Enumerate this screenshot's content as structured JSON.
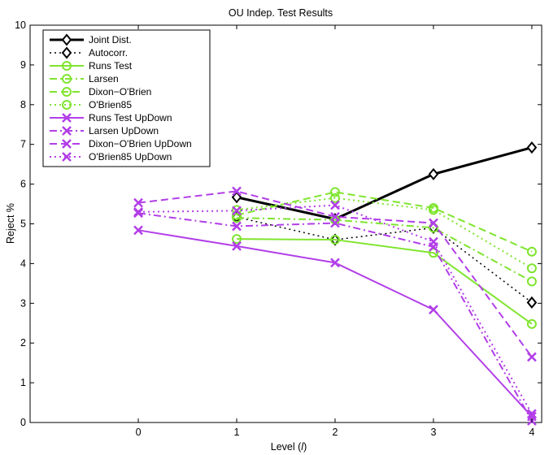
{
  "chart_data": {
    "type": "line",
    "title": "OU Indep. Test Results",
    "xlabel": "Level (",
    "xlabel_italic": "l",
    "xlabel_close": ")",
    "ylabel": "Reject %",
    "xlim": [
      -1.1,
      4.1
    ],
    "ylim": [
      0,
      10
    ],
    "xticks": [
      0,
      1,
      2,
      3,
      4
    ],
    "yticks": [
      0,
      1,
      2,
      3,
      4,
      5,
      6,
      7,
      8,
      9,
      10
    ],
    "grid": false,
    "legend_position": "top-left",
    "series": [
      {
        "name": "Joint Dist.",
        "color": "#000000",
        "dash": "solid",
        "width": 3,
        "marker": "diamond",
        "x": [
          1,
          2,
          3,
          4
        ],
        "values": [
          5.67,
          5.12,
          6.25,
          6.92
        ]
      },
      {
        "name": "Autocorr.",
        "color": "#000000",
        "dash": "dot",
        "width": 1.5,
        "marker": "diamond",
        "x": [
          1,
          2,
          3,
          4
        ],
        "values": [
          5.17,
          4.6,
          4.9,
          3.02
        ]
      },
      {
        "name": "Runs Test",
        "color": "#7fe52f",
        "dash": "solid",
        "width": 2,
        "marker": "circle",
        "x": [
          1,
          2,
          3,
          4
        ],
        "values": [
          4.62,
          4.6,
          4.27,
          2.48
        ]
      },
      {
        "name": "Larsen",
        "color": "#7fe52f",
        "dash": "dashdot",
        "width": 2,
        "marker": "circle",
        "x": [
          1,
          2,
          3,
          4
        ],
        "values": [
          5.15,
          5.1,
          4.9,
          3.55
        ]
      },
      {
        "name": "Dixon−O'Brien",
        "color": "#7fe52f",
        "dash": "dash",
        "width": 2,
        "marker": "circle",
        "x": [
          1,
          2,
          3,
          4
        ],
        "values": [
          5.22,
          5.8,
          5.4,
          4.3
        ]
      },
      {
        "name": "O'Brien85",
        "color": "#7fe52f",
        "dash": "dot",
        "width": 2,
        "marker": "circle",
        "x": [
          1,
          2,
          3,
          4
        ],
        "values": [
          5.35,
          5.65,
          5.35,
          3.88
        ]
      },
      {
        "name": "Runs Test UpDown",
        "color": "#b23ee8",
        "dash": "solid",
        "width": 2,
        "marker": "x",
        "x": [
          0,
          1,
          2,
          3,
          4
        ],
        "values": [
          4.84,
          4.44,
          4.02,
          2.84,
          0.15
        ]
      },
      {
        "name": "Larsen UpDown",
        "color": "#b23ee8",
        "dash": "dashdot",
        "width": 2,
        "marker": "x",
        "x": [
          0,
          1,
          2,
          3,
          4
        ],
        "values": [
          5.27,
          4.94,
          5.02,
          4.42,
          0.04
        ]
      },
      {
        "name": "Dixon−O'Brien UpDown",
        "color": "#b23ee8",
        "dash": "dash",
        "width": 2,
        "marker": "x",
        "x": [
          0,
          1,
          2,
          3,
          4
        ],
        "values": [
          5.53,
          5.82,
          5.18,
          5.02,
          1.65
        ]
      },
      {
        "name": "O'Brien85 UpDown",
        "color": "#b23ee8",
        "dash": "dot",
        "width": 2,
        "marker": "x",
        "x": [
          0,
          1,
          2,
          3,
          4
        ],
        "values": [
          5.3,
          5.33,
          5.47,
          4.55,
          0.22
        ]
      }
    ]
  }
}
